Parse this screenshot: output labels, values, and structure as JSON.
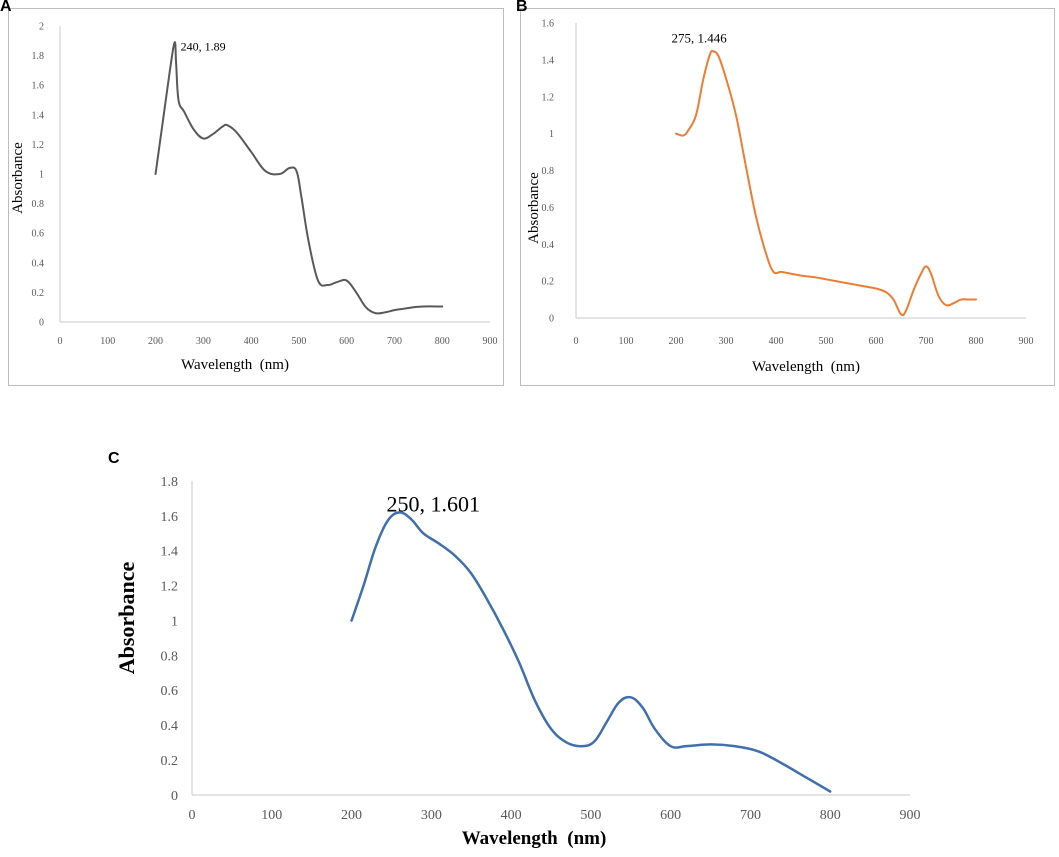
{
  "chart_data": [
    {
      "panel": "A",
      "type": "line",
      "xlabel": "Wavelength  (nm)",
      "ylabel": "Absorbance",
      "xlim": [
        0,
        900
      ],
      "ylim": [
        0,
        2
      ],
      "x_ticks": [
        0,
        100,
        200,
        300,
        400,
        500,
        600,
        700,
        800,
        900
      ],
      "y_ticks": [
        0,
        0.2,
        0.4,
        0.6,
        0.8,
        1,
        1.2,
        1.4,
        1.6,
        1.8,
        2
      ],
      "y_tick_labels": [
        "0",
        "0.2",
        "0.4",
        "0.6",
        "0.8",
        "1",
        "1.2",
        "1.4",
        "1.6",
        "1.8",
        "2"
      ],
      "grid": false,
      "color": "#595959",
      "annotation": {
        "text": "240, 1.89",
        "x": 240,
        "y": 1.89
      },
      "series": [
        {
          "name": "Absorbance",
          "x": [
            200,
            215,
            230,
            240,
            243,
            248,
            260,
            280,
            300,
            320,
            340,
            350,
            370,
            400,
            430,
            460,
            480,
            495,
            505,
            520,
            540,
            560,
            580,
            600,
            620,
            640,
            660,
            680,
            700,
            720,
            740,
            760,
            800
          ],
          "y": [
            1.0,
            1.35,
            1.7,
            1.89,
            1.75,
            1.5,
            1.42,
            1.3,
            1.24,
            1.27,
            1.32,
            1.33,
            1.28,
            1.15,
            1.02,
            1.0,
            1.04,
            1.02,
            0.85,
            0.55,
            0.28,
            0.25,
            0.27,
            0.28,
            0.2,
            0.1,
            0.06,
            0.065,
            0.08,
            0.09,
            0.1,
            0.105,
            0.105
          ]
        }
      ]
    },
    {
      "panel": "B",
      "type": "line",
      "xlabel": "Wavelength  (nm)",
      "ylabel": "Absorbance",
      "xlim": [
        0,
        900
      ],
      "ylim": [
        0,
        1.6
      ],
      "x_ticks": [
        0,
        100,
        200,
        300,
        400,
        500,
        600,
        700,
        800,
        900
      ],
      "y_ticks": [
        0,
        0.2,
        0.4,
        0.6,
        0.8,
        1,
        1.2,
        1.4,
        1.6
      ],
      "y_tick_labels": [
        "0",
        "0.2",
        "0.4",
        "0.6",
        "0.8",
        "1",
        "1.2",
        "1.4",
        "1.6"
      ],
      "grid": false,
      "color": "#ed7d31",
      "annotation": {
        "text": "275, 1.446",
        "x": 275,
        "y": 1.446
      },
      "series": [
        {
          "name": "Absorbance",
          "x": [
            200,
            215,
            225,
            240,
            255,
            268,
            275,
            285,
            300,
            320,
            340,
            360,
            380,
            395,
            410,
            430,
            450,
            480,
            500,
            520,
            540,
            560,
            580,
            600,
            620,
            635,
            650,
            660,
            675,
            690,
            700,
            710,
            725,
            740,
            755,
            770,
            785,
            800
          ],
          "y": [
            1.0,
            0.99,
            1.02,
            1.1,
            1.3,
            1.43,
            1.446,
            1.42,
            1.3,
            1.1,
            0.82,
            0.55,
            0.35,
            0.25,
            0.25,
            0.24,
            0.23,
            0.22,
            0.21,
            0.2,
            0.19,
            0.18,
            0.17,
            0.16,
            0.14,
            0.1,
            0.02,
            0.04,
            0.15,
            0.24,
            0.28,
            0.24,
            0.12,
            0.07,
            0.08,
            0.1,
            0.1,
            0.1
          ]
        }
      ]
    },
    {
      "panel": "C",
      "type": "line",
      "xlabel": "Wavelength  (nm)",
      "ylabel": "Absorbance",
      "xlim": [
        0,
        900
      ],
      "ylim": [
        0,
        1.8
      ],
      "x_ticks": [
        0,
        100,
        200,
        300,
        400,
        500,
        600,
        700,
        800,
        900
      ],
      "y_ticks": [
        0,
        0.2,
        0.4,
        0.6,
        0.8,
        1,
        1.2,
        1.4,
        1.6,
        1.8
      ],
      "y_tick_labels": [
        "0",
        "0.2",
        "0.4",
        "0.6",
        "0.8",
        "1",
        "1.2",
        "1.4",
        "1.6",
        "1.8"
      ],
      "grid": false,
      "color": "#3f6fae",
      "annotation": {
        "text": "250, 1.601",
        "x": 250,
        "y": 1.601
      },
      "series": [
        {
          "name": "Absorbance",
          "x": [
            200,
            215,
            230,
            245,
            260,
            275,
            290,
            310,
            330,
            350,
            370,
            390,
            410,
            430,
            450,
            470,
            490,
            505,
            520,
            535,
            550,
            565,
            580,
            600,
            620,
            650,
            680,
            710,
            740,
            770,
            800
          ],
          "y": [
            1.0,
            1.2,
            1.42,
            1.57,
            1.62,
            1.58,
            1.5,
            1.44,
            1.37,
            1.27,
            1.12,
            0.95,
            0.76,
            0.54,
            0.38,
            0.3,
            0.28,
            0.31,
            0.42,
            0.53,
            0.56,
            0.5,
            0.38,
            0.28,
            0.28,
            0.29,
            0.28,
            0.25,
            0.18,
            0.1,
            0.02
          ]
        }
      ]
    }
  ],
  "panel_letters": {
    "a": "A",
    "b": "B",
    "c": "C"
  }
}
